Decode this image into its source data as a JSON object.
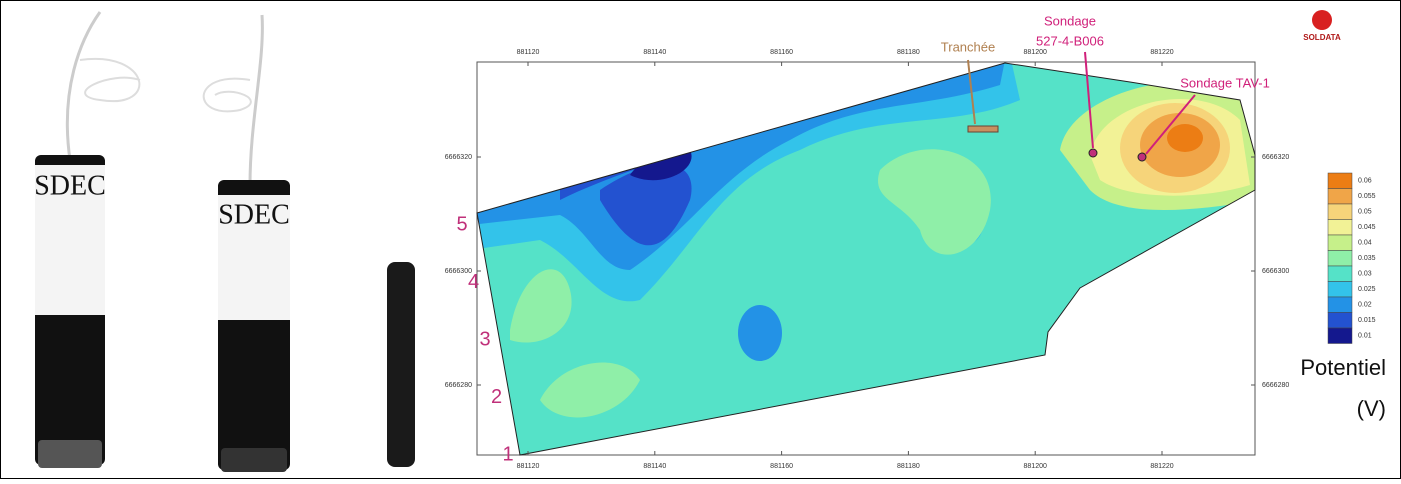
{
  "photo": {
    "electrode_labels": [
      "SDEC",
      "SDEC"
    ]
  },
  "logo": "SOLDATA",
  "map": {
    "x_ticks": [
      881120,
      881140,
      881160,
      881180,
      881200,
      881220
    ],
    "y_ticks": [
      6666320,
      6666300,
      6666280
    ],
    "profiles": [
      5,
      4,
      3,
      2,
      1
    ],
    "annotations": {
      "trench": "Tranchée",
      "borehole_1": [
        "Sondage",
        "527-4-B006"
      ],
      "borehole_2": "Sondage TAV-1"
    },
    "colorbar": {
      "levels": [
        0.06,
        0.055,
        0.05,
        0.045,
        0.04,
        0.035,
        0.03,
        0.025,
        0.02,
        0.015,
        0.01
      ],
      "colors": [
        "#ec7d14",
        "#f0a548",
        "#f6d47a",
        "#f2f296",
        "#c6f08a",
        "#8fefa8",
        "#55e2c8",
        "#33c3ea",
        "#2392e6",
        "#2352d0",
        "#14188e"
      ],
      "title": [
        "Potentiel",
        "(V)"
      ]
    }
  }
}
